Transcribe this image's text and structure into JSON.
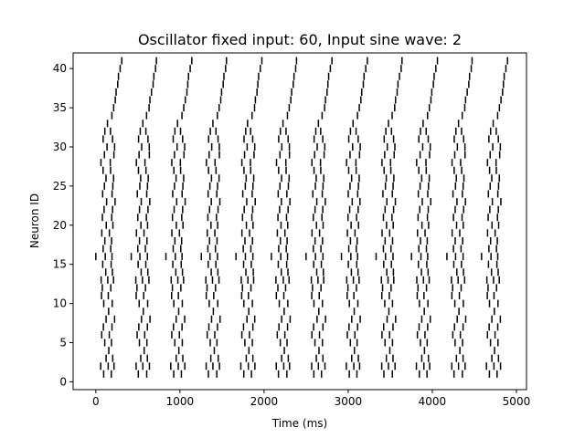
{
  "chart_data": {
    "type": "scatter",
    "marker": "vertical-line",
    "title": "Oscillator fixed input: 60, Input sine wave: 2",
    "xlabel": "Time (ms)",
    "ylabel": "Neuron ID",
    "xlim": [
      -270,
      5120
    ],
    "ylim": [
      -1,
      42
    ],
    "xticks": [
      0,
      1000,
      2000,
      3000,
      4000,
      5000
    ],
    "xtick_labels": [
      "0",
      "1000",
      "2000",
      "3000",
      "4000",
      "5000"
    ],
    "yticks": [
      0,
      5,
      10,
      15,
      20,
      25,
      30,
      35,
      40
    ],
    "ytick_labels": [
      "0",
      "5",
      "10",
      "15",
      "20",
      "25",
      "30",
      "35",
      "40"
    ],
    "grid": false,
    "burst_period_ms": 417,
    "num_bursts": 12,
    "series": [
      {
        "description_of_points": "spike times per neuron",
        "cycle_offsets_ms": {
          "1": [
            90,
            185
          ],
          "2": [
            60,
            145,
            220
          ],
          "3": [
            120,
            200
          ],
          "4": [
            155
          ],
          "5": [
            105,
            190
          ],
          "6": [
            70,
            160
          ],
          "7": [
            90,
            195
          ],
          "8": [
            125,
            225
          ],
          "9": [
            150
          ],
          "10": [
            95,
            195
          ],
          "11": [
            65,
            150
          ],
          "12": [
            75,
            175
          ],
          "13": [
            60,
            140,
            210
          ],
          "14": [
            120,
            200
          ],
          "15": [
            85,
            180
          ],
          "16": [
            0,
            110,
            195
          ],
          "17": [
            85,
            175
          ],
          "18": [
            105,
            190
          ],
          "19": [
            70,
            160
          ],
          "20": [
            120,
            200
          ],
          "21": [
            80,
            185
          ],
          "22": [
            100,
            200
          ],
          "23": [
            125,
            225
          ],
          "24": [
            80,
            190
          ],
          "25": [
            105,
            200
          ],
          "26": [
            120,
            210
          ],
          "27": [
            90,
            175
          ],
          "28": [
            65,
            170
          ],
          "29": [
            100,
            215
          ],
          "30": [
            130,
            220
          ],
          "31": [
            90,
            200
          ],
          "32": [
            110,
            175
          ],
          "33": [
            140
          ],
          "34": [
            190
          ],
          "35": [
            215
          ],
          "36": [
            230
          ],
          "37": [
            245
          ],
          "38": [
            260
          ],
          "39": [
            270
          ],
          "40": [
            290
          ],
          "41": [
            305
          ]
        }
      }
    ]
  }
}
